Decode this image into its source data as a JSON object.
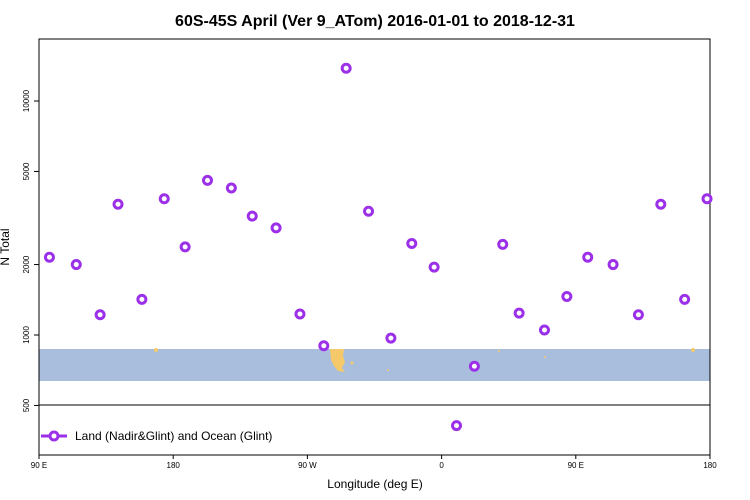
{
  "chart_data": {
    "type": "scatter",
    "title": "60S-45S April (Ver 9_ATom)   2016-01-01 to 2018-12-31",
    "xlabel": "Longitude (deg E)",
    "ylabel": "N Total",
    "y_scale": "log",
    "ylim": [
      400,
      15000
    ],
    "x_ticks": [
      "90 E",
      "180",
      "90 W",
      "0",
      "90 E",
      "180"
    ],
    "y_ticks": [
      {
        "value": 500,
        "label": "500"
      },
      {
        "value": 1000,
        "label": "1000"
      },
      {
        "value": 2000,
        "label": "2000"
      },
      {
        "value": 5000,
        "label": "5000"
      },
      {
        "value": 10000,
        "label": "10000"
      }
    ],
    "series": [
      {
        "name": "Land (Nadir&Glint) and Ocean (Glint)",
        "color": "#9b30e8",
        "marker": "open-circle",
        "points": [
          {
            "x": 97,
            "y": 2150
          },
          {
            "x": 115,
            "y": 2000
          },
          {
            "x": 131,
            "y": 1220
          },
          {
            "x": 143,
            "y": 3620
          },
          {
            "x": 159,
            "y": 1420
          },
          {
            "x": 174,
            "y": 3820
          },
          {
            "x": 188,
            "y": 2380
          },
          {
            "x": 203,
            "y": 4580
          },
          {
            "x": 219,
            "y": 4250
          },
          {
            "x": 233,
            "y": 3220
          },
          {
            "x": 249,
            "y": 2870
          },
          {
            "x": 265,
            "y": 1230
          },
          {
            "x": 281,
            "y": 900
          },
          {
            "x": 296,
            "y": 13800
          },
          {
            "x": 311,
            "y": 3380
          },
          {
            "x": 326,
            "y": 970
          },
          {
            "x": 340,
            "y": 2460
          },
          {
            "x": 355,
            "y": 1950
          },
          {
            "x": 370,
            "y": 410
          },
          {
            "x": 382,
            "y": 735
          },
          {
            "x": 401,
            "y": 2440
          },
          {
            "x": 412,
            "y": 1240
          },
          {
            "x": 429,
            "y": 1050
          },
          {
            "x": 444,
            "y": 1460
          },
          {
            "x": 458,
            "y": 2150
          },
          {
            "x": 475,
            "y": 2000
          },
          {
            "x": 492,
            "y": 1220
          },
          {
            "x": 507,
            "y": 3620
          },
          {
            "x": 523,
            "y": 1420
          },
          {
            "x": 538,
            "y": 3820
          }
        ]
      }
    ],
    "legend": {
      "placement": "bottom-left"
    },
    "background_band": {
      "color": "#a9bedd",
      "land_color": "#f5c96a"
    }
  }
}
